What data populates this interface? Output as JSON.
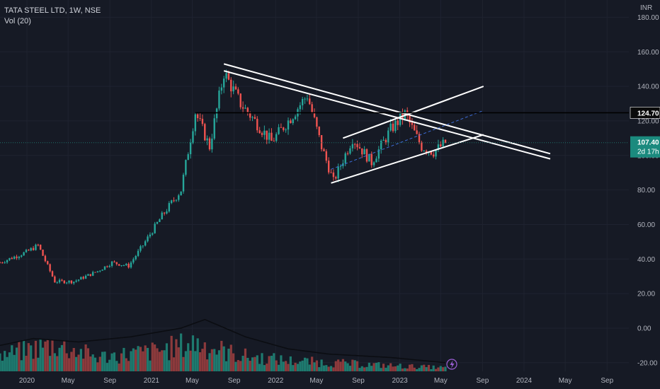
{
  "legend": {
    "symbol": "TATA STEEL LTD, 1W, NSE",
    "volume": "Vol (20)"
  },
  "currency_label": "INR",
  "price_labels": {
    "resistance": "124.70",
    "last": "107.40",
    "countdown": "2d 17h"
  },
  "colors": {
    "background": "#161a25",
    "grid": "#1f2330",
    "up": "#26a69a",
    "down": "#ef5350",
    "vol_up": "#1e7a6f",
    "vol_down": "#8c3a3c",
    "text": "#b2b5be",
    "trendline": "#ffffff",
    "midline": "#3d6dd8",
    "resistance": "#000000",
    "last_price_line": "#1f6f6a",
    "last_price_bg": "#1b8a7e",
    "flash_icon": "#9c5fd6"
  },
  "chart_data": {
    "type": "candlestick",
    "timeframe": "1W",
    "y_axis": {
      "ticks": [
        180,
        160,
        140,
        120,
        100,
        80,
        60,
        40,
        20,
        0,
        -20
      ],
      "tick_labels": [
        "180.00",
        "160.00",
        "140.00",
        "120.00",
        "100.00",
        "80.00",
        "60.00",
        "40.00",
        "20.00",
        "0.00",
        "-20.00"
      ],
      "range": [
        -25,
        190
      ]
    },
    "x_axis": {
      "range": [
        "2019-10-14",
        "2024-11-04"
      ],
      "tick_labels": [
        "2020",
        "May",
        "Sep",
        "2021",
        "May",
        "Sep",
        "2022",
        "May",
        "Sep",
        "2023",
        "May",
        "Sep",
        "2024",
        "May",
        "Sep"
      ],
      "tick_dates": [
        "2020-01-01",
        "2020-05-01",
        "2020-09-01",
        "2021-01-01",
        "2021-05-01",
        "2021-09-01",
        "2022-01-01",
        "2022-05-01",
        "2022-09-01",
        "2023-01-01",
        "2023-05-01",
        "2023-09-01",
        "2024-01-01",
        "2024-05-01",
        "2024-09-01"
      ]
    },
    "price_keypoints": [
      [
        "2019-10-14",
        38
      ],
      [
        "2019-12-30",
        44
      ],
      [
        "2020-02-03",
        48
      ],
      [
        "2020-03-23",
        27
      ],
      [
        "2020-05-18",
        27
      ],
      [
        "2020-07-27",
        33
      ],
      [
        "2020-09-07",
        38
      ],
      [
        "2020-10-26",
        36
      ],
      [
        "2020-12-07",
        48
      ],
      [
        "2021-02-01",
        65
      ],
      [
        "2021-03-29",
        80
      ],
      [
        "2021-05-10",
        125
      ],
      [
        "2021-06-21",
        105
      ],
      [
        "2021-08-02",
        148
      ],
      [
        "2021-09-20",
        130
      ],
      [
        "2021-11-01",
        120
      ],
      [
        "2021-12-20",
        108
      ],
      [
        "2022-02-07",
        120
      ],
      [
        "2022-04-04",
        135
      ],
      [
        "2022-05-16",
        105
      ],
      [
        "2022-06-20",
        85
      ],
      [
        "2022-08-15",
        110
      ],
      [
        "2022-10-10",
        96
      ],
      [
        "2022-12-05",
        115
      ],
      [
        "2023-01-16",
        124
      ],
      [
        "2023-03-06",
        105
      ],
      [
        "2023-04-10",
        102
      ],
      [
        "2023-05-15",
        107.4
      ]
    ],
    "volume_keypoints": [
      [
        "2019-10-14",
        22
      ],
      [
        "2020-03-23",
        38
      ],
      [
        "2020-07-27",
        20
      ],
      [
        "2021-01-11",
        28
      ],
      [
        "2021-05-10",
        40
      ],
      [
        "2021-09-20",
        22
      ],
      [
        "2022-02-07",
        15
      ],
      [
        "2022-06-20",
        12
      ],
      [
        "2022-12-05",
        8
      ],
      [
        "2023-05-15",
        5
      ]
    ],
    "volume_ma_keypoints": [
      [
        "2019-10-14",
        -10
      ],
      [
        "2020-01-20",
        -6
      ],
      [
        "2020-06-01",
        -8
      ],
      [
        "2020-11-02",
        -5
      ],
      [
        "2021-03-29",
        0
      ],
      [
        "2021-06-07",
        5
      ],
      [
        "2021-10-04",
        -5
      ],
      [
        "2022-02-07",
        -12
      ],
      [
        "2022-06-06",
        -15
      ],
      [
        "2022-12-05",
        -17
      ],
      [
        "2023-05-15",
        -20
      ]
    ],
    "last_price": 107.4,
    "resistance_level": 124.7,
    "trendlines": [
      {
        "name": "upper-falling-trendline-1",
        "from": [
          "2021-08-02",
          153
        ],
        "to": [
          "2024-03-18",
          101
        ]
      },
      {
        "name": "upper-falling-trendline-2",
        "from": [
          "2021-08-02",
          149
        ],
        "to": [
          "2024-03-18",
          98
        ]
      },
      {
        "name": "channel-upper-line",
        "from": [
          "2022-07-18",
          110
        ],
        "to": [
          "2023-09-04",
          140
        ]
      },
      {
        "name": "channel-lower-line",
        "from": [
          "2022-06-13",
          84
        ],
        "to": [
          "2023-09-04",
          112
        ]
      },
      {
        "name": "channel-mid-line",
        "from": [
          "2022-06-13",
          92
        ],
        "to": [
          "2023-09-04",
          126
        ],
        "dashed": true
      }
    ],
    "resistance_line_from": "2021-05-10"
  }
}
